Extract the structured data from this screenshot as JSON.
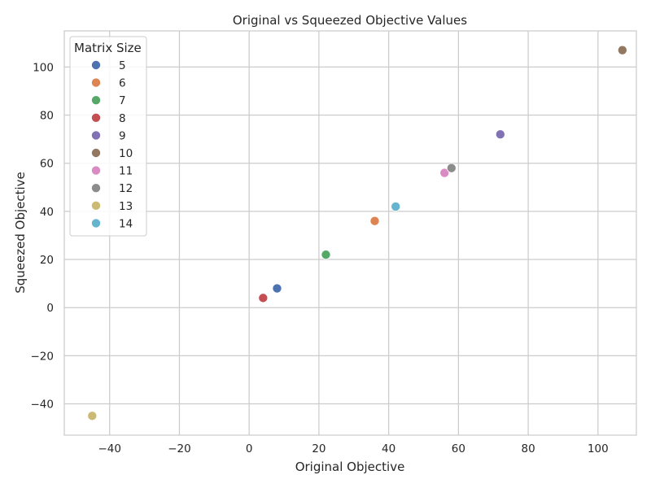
{
  "chart_data": {
    "type": "scatter",
    "title": "Original vs Squeezed Objective Values",
    "xlabel": "Original Objective",
    "ylabel": "Squeezed Objective",
    "xlim": [
      -53,
      111
    ],
    "ylim": [
      -53,
      115
    ],
    "xticks": [
      -40,
      -20,
      0,
      20,
      40,
      60,
      80,
      100
    ],
    "yticks": [
      -40,
      -20,
      0,
      20,
      40,
      60,
      80,
      100
    ],
    "grid": true,
    "legend": {
      "title": "Matrix Size",
      "placement": "top-left"
    },
    "series": [
      {
        "name": "5",
        "color": "#4c72b0",
        "x": [
          8
        ],
        "y": [
          8
        ]
      },
      {
        "name": "6",
        "color": "#dd8452",
        "x": [
          36
        ],
        "y": [
          36
        ]
      },
      {
        "name": "7",
        "color": "#55a868",
        "x": [
          22
        ],
        "y": [
          22
        ]
      },
      {
        "name": "8",
        "color": "#c44e52",
        "x": [
          4
        ],
        "y": [
          4
        ]
      },
      {
        "name": "9",
        "color": "#8172b3",
        "x": [
          72
        ],
        "y": [
          72
        ]
      },
      {
        "name": "10",
        "color": "#937860",
        "x": [
          107
        ],
        "y": [
          107
        ]
      },
      {
        "name": "11",
        "color": "#da8bc3",
        "x": [
          56
        ],
        "y": [
          56
        ]
      },
      {
        "name": "12",
        "color": "#8c8c8c",
        "x": [
          58
        ],
        "y": [
          58
        ]
      },
      {
        "name": "13",
        "color": "#ccb974",
        "x": [
          -45
        ],
        "y": [
          -45
        ]
      },
      {
        "name": "14",
        "color": "#64b5cd",
        "x": [
          42
        ],
        "y": [
          42
        ]
      }
    ]
  }
}
